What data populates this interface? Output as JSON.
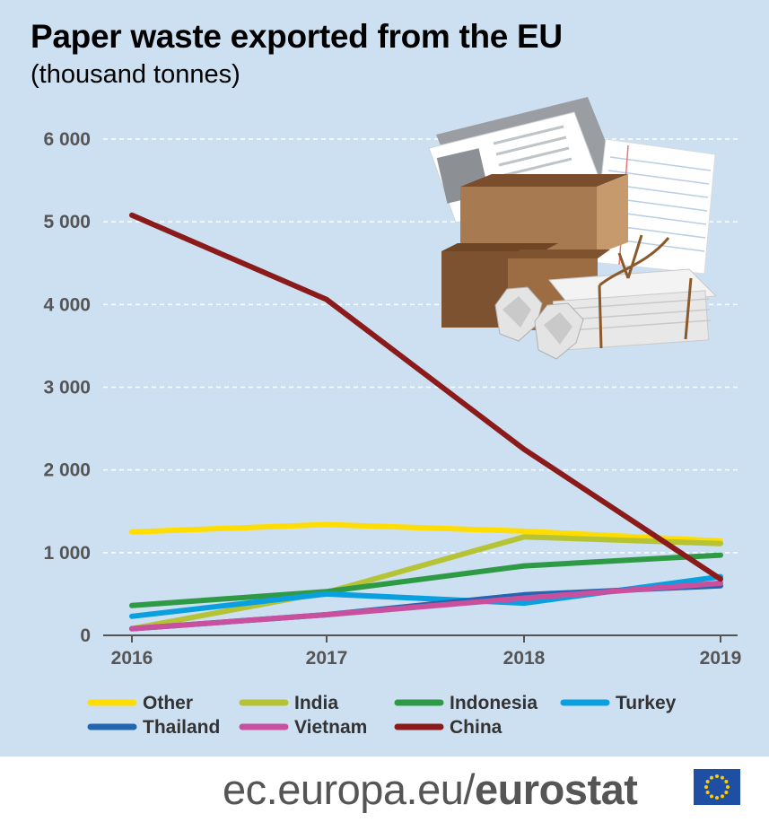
{
  "header": {
    "title": "Paper waste exported from the EU",
    "subtitle": "(thousand tonnes)"
  },
  "footer": {
    "site": "ec.europa.eu/",
    "brand": "eurostat",
    "flag_icon": "eu-flag-icon"
  },
  "illustration": {
    "icon": "paper-waste-illustration-icon"
  },
  "chart_data": {
    "type": "line",
    "title": "Paper waste exported from the EU",
    "subtitle": "(thousand tonnes)",
    "xlabel": "",
    "ylabel": "",
    "categories": [
      "2016",
      "2017",
      "2018",
      "2019"
    ],
    "ylim": [
      0,
      6000
    ],
    "yticks": [
      0,
      1000,
      2000,
      3000,
      4000,
      5000,
      6000
    ],
    "ytick_labels": [
      "0",
      "1 000",
      "2 000",
      "3 000",
      "4 000",
      "5 000",
      "6 000"
    ],
    "grid": true,
    "legend_position": "bottom",
    "series": [
      {
        "name": "Other",
        "color": "#ffdd00",
        "values": [
          1250,
          1340,
          1260,
          1140
        ]
      },
      {
        "name": "India",
        "color": "#b5c334",
        "values": [
          80,
          520,
          1190,
          1110
        ]
      },
      {
        "name": "Indonesia",
        "color": "#2e9a46",
        "values": [
          360,
          530,
          840,
          970
        ]
      },
      {
        "name": "Turkey",
        "color": "#0aa0e0",
        "values": [
          230,
          500,
          390,
          710
        ]
      },
      {
        "name": "Thailand",
        "color": "#2166ae",
        "values": [
          80,
          250,
          490,
          600
        ]
      },
      {
        "name": "Vietnam",
        "color": "#c8509e",
        "values": [
          80,
          250,
          450,
          630
        ]
      },
      {
        "name": "China",
        "color": "#8b1a1a",
        "values": [
          5080,
          4060,
          2250,
          680
        ]
      }
    ]
  }
}
